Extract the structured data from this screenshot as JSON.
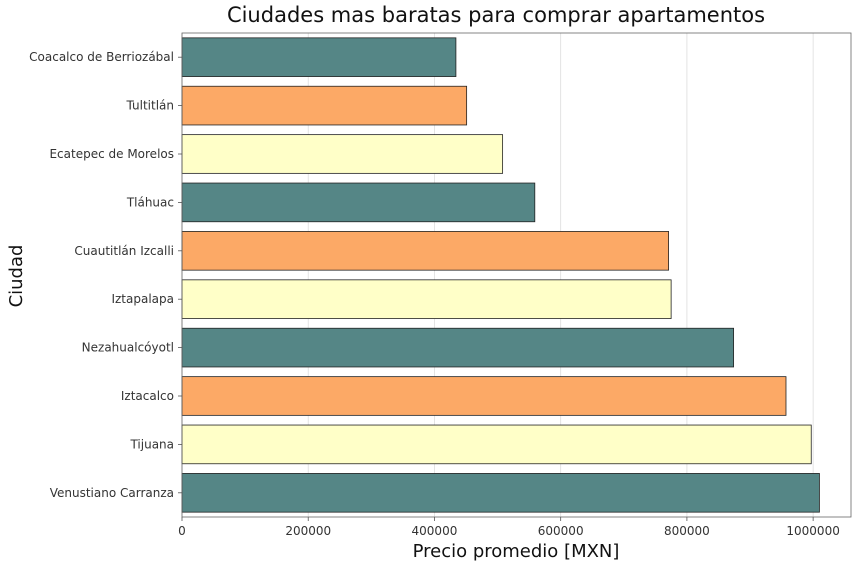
{
  "chart_data": {
    "type": "bar",
    "orientation": "horizontal",
    "title": "Ciudades mas baratas para comprar apartamentos",
    "xlabel": "Precio promedio [MXN]",
    "ylabel": "Ciudad",
    "xlim": [
      0,
      1060000
    ],
    "xticks": [
      0,
      200000,
      400000,
      600000,
      800000,
      1000000
    ],
    "xtick_labels": [
      "0",
      "200000",
      "400000",
      "600000",
      "800000",
      "1000000"
    ],
    "grid": "vertical",
    "categories": [
      "Coacalco de Berriozábal",
      "Tultitlán",
      "Ecatepec de Morelos",
      "Tláhuac",
      "Cuautitlán Izcalli",
      "Iztapalapa",
      "Nezahualcóyotl",
      "Iztacalco",
      "Tijuana",
      "Venustiano Carranza"
    ],
    "values": [
      434000,
      451000,
      508000,
      559000,
      771000,
      775000,
      874000,
      957000,
      997000,
      1010000
    ],
    "colors": [
      "#558686",
      "#fca966",
      "#ffffc8",
      "#558686",
      "#fca966",
      "#ffffc8",
      "#558686",
      "#fca966",
      "#ffffc8",
      "#558686"
    ]
  }
}
